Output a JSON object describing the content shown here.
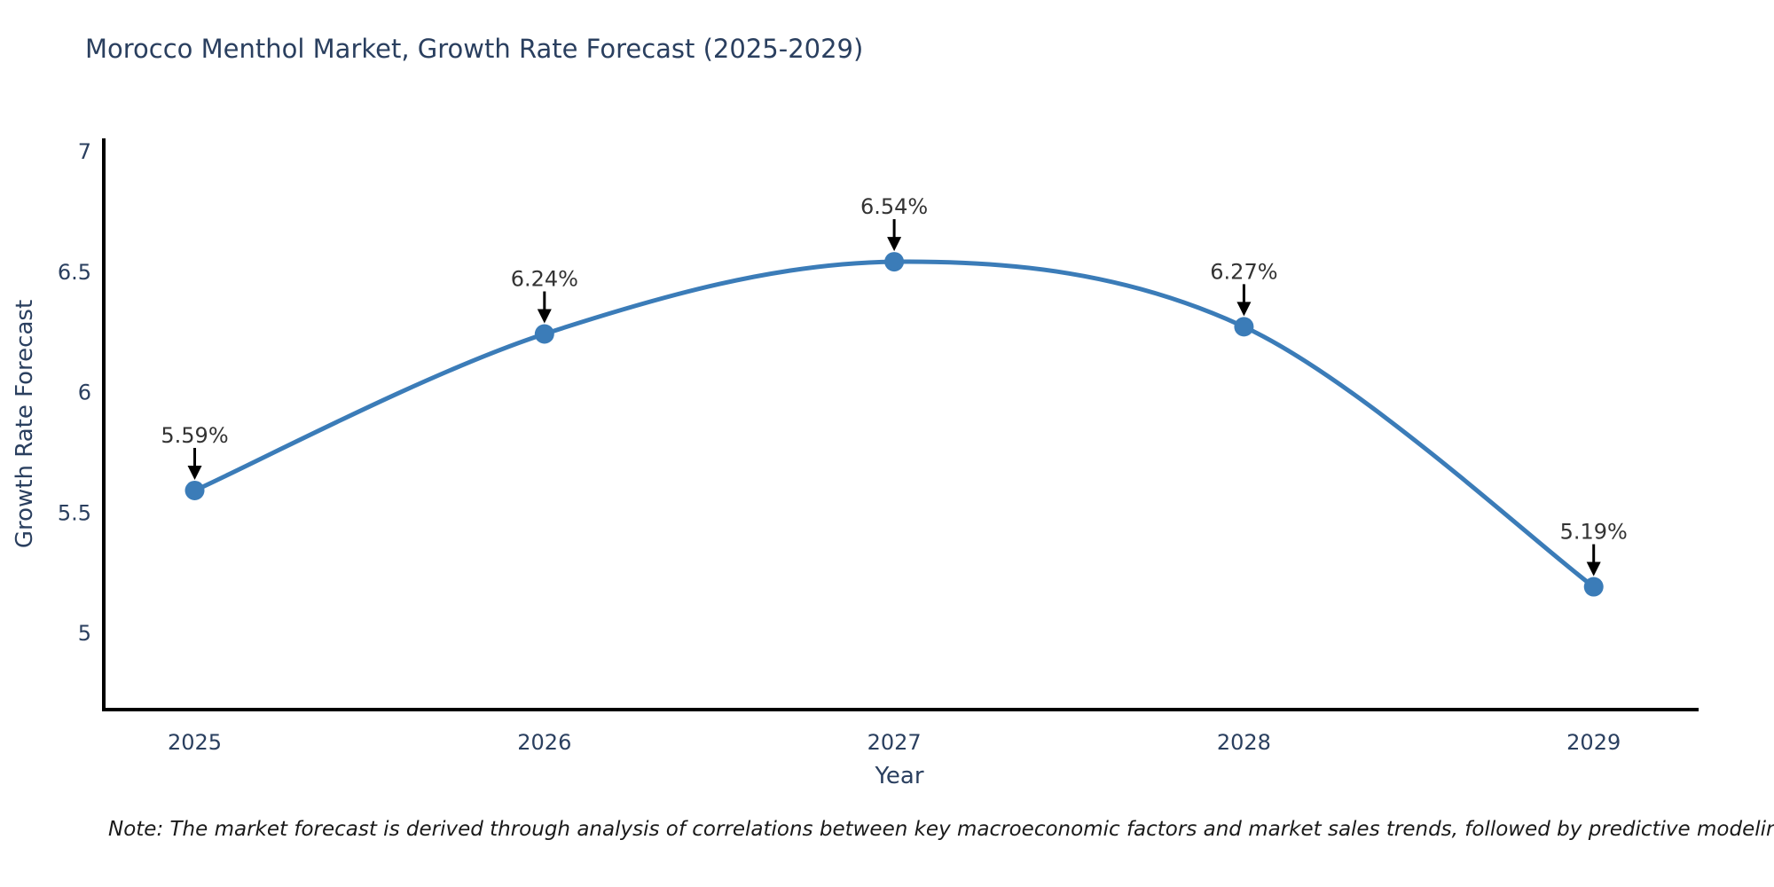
{
  "page": {
    "background": "#ffffff"
  },
  "chart_data": {
    "type": "line",
    "title": "Morocco Menthol Market, Growth Rate Forecast (2025-2029)",
    "xlabel": "Year",
    "ylabel": "Growth Rate Forecast",
    "x": [
      2025,
      2026,
      2027,
      2028,
      2029
    ],
    "series": [
      {
        "name": "Growth Rate Forecast",
        "values": [
          5.59,
          6.24,
          6.54,
          6.27,
          5.19
        ],
        "point_labels": [
          "5.59%",
          "6.24%",
          "6.54%",
          "6.27%",
          "5.19%"
        ]
      }
    ],
    "xticks": [
      "2025",
      "2026",
      "2027",
      "2028",
      "2029"
    ],
    "yticks": [
      5,
      5.5,
      6,
      6.5,
      7
    ],
    "ytick_labels": [
      "5",
      "5.5",
      "6",
      "6.5",
      "7"
    ],
    "xlim": [
      2024.74,
      2029.3
    ],
    "ylim": [
      4.68,
      7.045
    ],
    "grid": false,
    "legend": false,
    "line_shape": "spline",
    "marker": "circle",
    "annotations_have_arrows": true,
    "colors": {
      "line": "#3b7cb8",
      "marker": "#3b7cb8",
      "axis": "#000000",
      "tick_text": "#2a3f5f",
      "annotation_text": "#333333",
      "arrow": "#000000",
      "background": "#ffffff"
    },
    "note": "Note: The market forecast is derived through analysis of correlations between key macroeconomic factors and market sales trends, followed by predictive modeling to project future sales"
  }
}
